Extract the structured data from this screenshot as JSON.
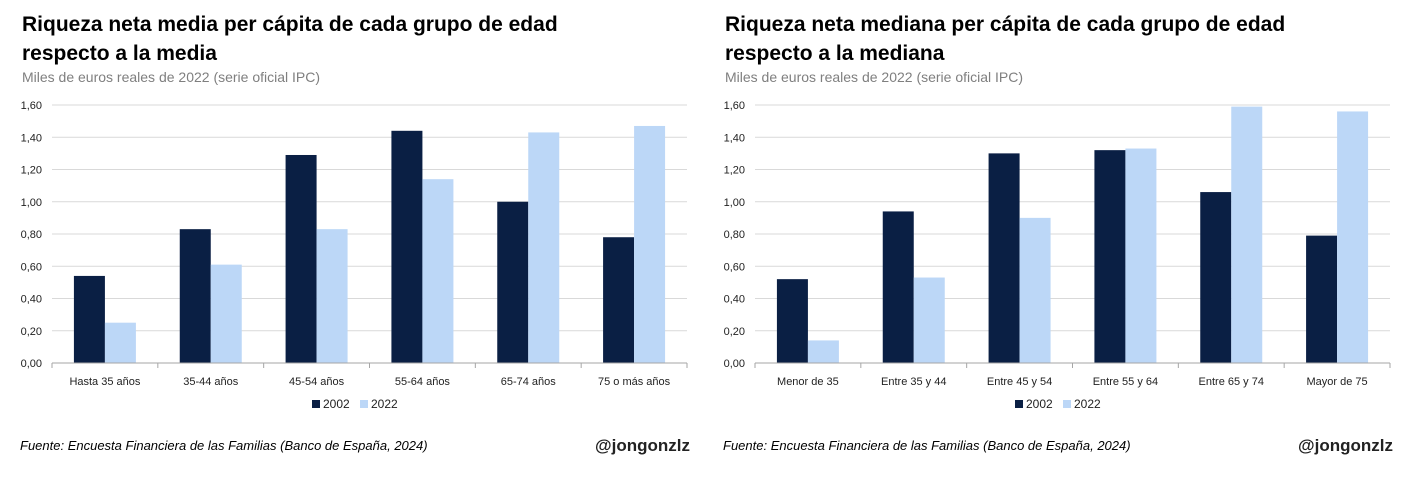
{
  "colors": {
    "s2002": "#0a1f44",
    "s2022": "#bcd7f7",
    "grid": "#d9d9d9",
    "axis": "#a6a6a6"
  },
  "chart_data": [
    {
      "type": "bar",
      "title": "Riqueza neta media per cápita de cada grupo de edad respecto a la media",
      "subtitle": "Miles de euros reales de 2022 (serie oficial IPC)",
      "categories": [
        "Hasta 35 años",
        "35-44 años",
        "45-54 años",
        "55-64 años",
        "65-74 años",
        "75 o más años"
      ],
      "series": [
        {
          "name": "2002",
          "values": [
            0.54,
            0.83,
            1.29,
            1.44,
            1.0,
            0.78
          ]
        },
        {
          "name": "2022",
          "values": [
            0.25,
            0.61,
            0.83,
            1.14,
            1.43,
            1.47
          ]
        }
      ],
      "ylim": [
        0,
        1.6
      ],
      "yticks": [
        "0,00",
        "0,20",
        "0,40",
        "0,60",
        "0,80",
        "1,00",
        "1,20",
        "1,40",
        "1,60"
      ],
      "grid": true,
      "legend": "bottom-center"
    },
    {
      "type": "bar",
      "title": "Riqueza neta mediana per cápita de cada grupo de edad respecto a la mediana",
      "subtitle": "Miles de euros reales de 2022 (serie oficial IPC)",
      "categories": [
        "Menor de 35",
        "Entre 35 y 44",
        "Entre 45 y 54",
        "Entre 55 y 64",
        "Entre 65 y 74",
        "Mayor de 75"
      ],
      "series": [
        {
          "name": "2002",
          "values": [
            0.52,
            0.94,
            1.3,
            1.32,
            1.06,
            0.79
          ]
        },
        {
          "name": "2022",
          "values": [
            0.14,
            0.53,
            0.9,
            1.33,
            1.59,
            1.56
          ]
        }
      ],
      "ylim": [
        0,
        1.6
      ],
      "yticks": [
        "0,00",
        "0,20",
        "0,40",
        "0,60",
        "0,80",
        "1,00",
        "1,20",
        "1,40",
        "1,60"
      ],
      "grid": true,
      "legend": "bottom-center"
    }
  ],
  "footer": {
    "left_source": "Fuente: Encuesta Financiera de las Familias (Banco de España, 2024)",
    "left_handle": "@jongonzlz",
    "right_source": "Fuente: Encuesta Financiera de las Familias (Banco de España, 2024)",
    "right_handle": "@jongonzlz"
  }
}
